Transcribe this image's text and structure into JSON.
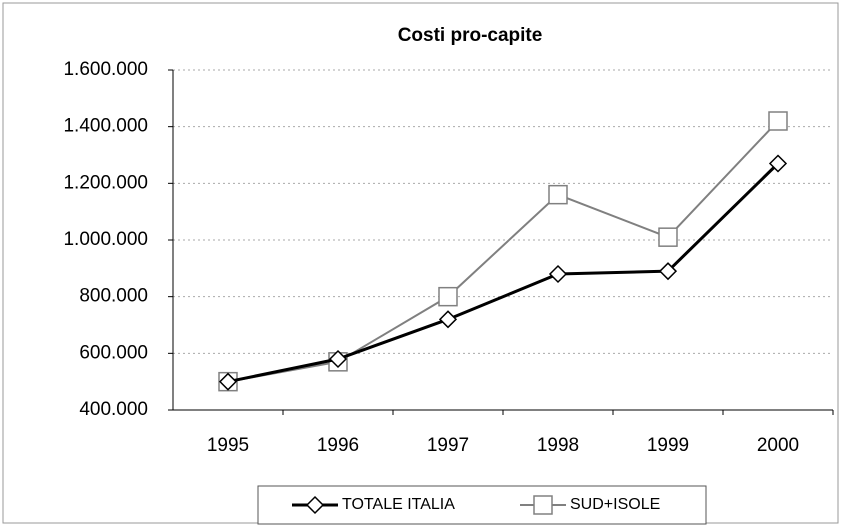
{
  "chart_data": {
    "type": "line",
    "title": "Costi pro-capite",
    "categories": [
      "1995",
      "1996",
      "1997",
      "1998",
      "1999",
      "2000"
    ],
    "series": [
      {
        "name": "TOTALE ITALIA",
        "color": "#000000",
        "marker": "diamond",
        "values": [
          500000,
          580000,
          720000,
          880000,
          890000,
          1270000
        ]
      },
      {
        "name": "SUD+ISOLE",
        "color": "#808080",
        "marker": "square",
        "values": [
          500000,
          570000,
          800000,
          1160000,
          1010000,
          1420000
        ]
      }
    ],
    "ylim": [
      400000,
      1600000
    ],
    "yticks": [
      {
        "value": 400000,
        "label": "400.000"
      },
      {
        "value": 600000,
        "label": "600.000"
      },
      {
        "value": 800000,
        "label": "800.000"
      },
      {
        "value": 1000000,
        "label": "1.000.000"
      },
      {
        "value": 1200000,
        "label": "1.200.000"
      },
      {
        "value": 1400000,
        "label": "1.400.000"
      },
      {
        "value": 1600000,
        "label": "1.600.000"
      }
    ],
    "grid": true,
    "legend": "bottom"
  }
}
